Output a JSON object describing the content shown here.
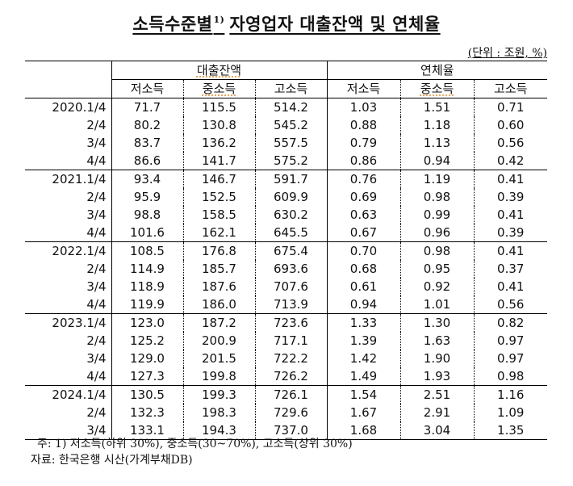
{
  "title": {
    "text": "소득수준별",
    "superscript": "1)",
    "rest": "자영업자 대출잔액 및 연체율"
  },
  "unit": "(단위 : 조원, %)",
  "table": {
    "groups": [
      {
        "label": "대출잔액",
        "columns": [
          "저소득",
          "중소득",
          "고소득"
        ]
      },
      {
        "label": "연체율",
        "columns": [
          "저소득",
          "중소득",
          "고소득"
        ]
      }
    ],
    "rows": [
      {
        "period": "2020.1/4",
        "loan": [
          "71.7",
          "115.5",
          "514.2"
        ],
        "delinquency": [
          "1.03",
          "1.51",
          "0.71"
        ]
      },
      {
        "period": "2/4",
        "loan": [
          "80.2",
          "130.8",
          "545.2"
        ],
        "delinquency": [
          "0.88",
          "1.18",
          "0.60"
        ]
      },
      {
        "period": "3/4",
        "loan": [
          "83.7",
          "136.2",
          "557.5"
        ],
        "delinquency": [
          "0.79",
          "1.13",
          "0.56"
        ]
      },
      {
        "period": "4/4",
        "loan": [
          "86.6",
          "141.7",
          "575.2"
        ],
        "delinquency": [
          "0.86",
          "0.94",
          "0.42"
        ]
      },
      {
        "period": "2021.1/4",
        "loan": [
          "93.4",
          "146.7",
          "591.7"
        ],
        "delinquency": [
          "0.76",
          "1.19",
          "0.41"
        ]
      },
      {
        "period": "2/4",
        "loan": [
          "95.9",
          "152.5",
          "609.9"
        ],
        "delinquency": [
          "0.69",
          "0.98",
          "0.39"
        ]
      },
      {
        "period": "3/4",
        "loan": [
          "98.8",
          "158.5",
          "630.2"
        ],
        "delinquency": [
          "0.63",
          "0.99",
          "0.41"
        ]
      },
      {
        "period": "4/4",
        "loan": [
          "101.6",
          "162.1",
          "645.5"
        ],
        "delinquency": [
          "0.67",
          "0.96",
          "0.39"
        ]
      },
      {
        "period": "2022.1/4",
        "loan": [
          "108.5",
          "176.8",
          "675.4"
        ],
        "delinquency": [
          "0.70",
          "0.98",
          "0.41"
        ]
      },
      {
        "period": "2/4",
        "loan": [
          "114.9",
          "185.7",
          "693.6"
        ],
        "delinquency": [
          "0.68",
          "0.95",
          "0.37"
        ]
      },
      {
        "period": "3/4",
        "loan": [
          "118.9",
          "187.6",
          "707.6"
        ],
        "delinquency": [
          "0.61",
          "0.92",
          "0.41"
        ]
      },
      {
        "period": "4/4",
        "loan": [
          "119.9",
          "186.0",
          "713.9"
        ],
        "delinquency": [
          "0.94",
          "1.01",
          "0.56"
        ]
      },
      {
        "period": "2023.1/4",
        "loan": [
          "123.0",
          "187.2",
          "723.6"
        ],
        "delinquency": [
          "1.33",
          "1.30",
          "0.82"
        ]
      },
      {
        "period": "2/4",
        "loan": [
          "125.2",
          "200.9",
          "717.1"
        ],
        "delinquency": [
          "1.39",
          "1.63",
          "0.97"
        ]
      },
      {
        "period": "3/4",
        "loan": [
          "129.0",
          "201.5",
          "722.2"
        ],
        "delinquency": [
          "1.42",
          "1.90",
          "0.97"
        ]
      },
      {
        "period": "4/4",
        "loan": [
          "127.3",
          "199.8",
          "726.2"
        ],
        "delinquency": [
          "1.49",
          "1.93",
          "0.98"
        ]
      },
      {
        "period": "2024.1/4",
        "loan": [
          "130.5",
          "199.3",
          "726.1"
        ],
        "delinquency": [
          "1.54",
          "2.51",
          "1.16"
        ]
      },
      {
        "period": "2/4",
        "loan": [
          "132.3",
          "198.3",
          "729.6"
        ],
        "delinquency": [
          "1.67",
          "2.91",
          "1.09"
        ]
      },
      {
        "period": "3/4",
        "loan": [
          "133.1",
          "194.3",
          "737.0"
        ],
        "delinquency": [
          "1.68",
          "3.04",
          "1.35"
        ]
      }
    ]
  },
  "notes": {
    "note": "주: 1) 저소득(하위 30%), 중소득(30~70%), 고소득(상위 30%)",
    "source": "자료: 한국은행 시산(가계부채DB)"
  }
}
